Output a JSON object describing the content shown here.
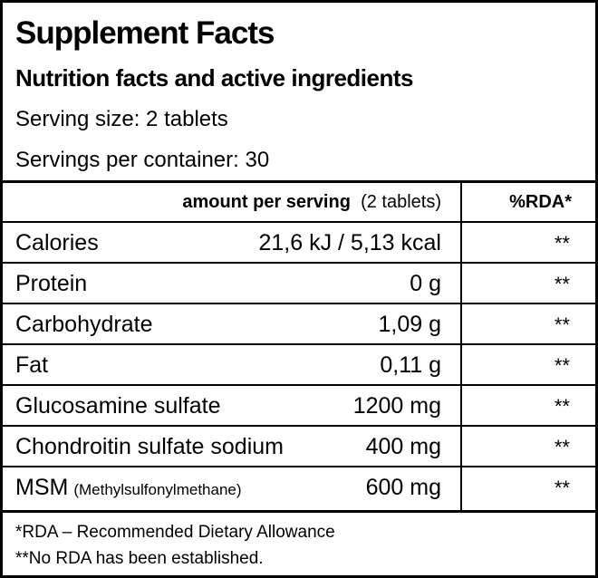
{
  "header": {
    "title": "Supplement Facts",
    "subtitle": "Nutrition facts and active ingredients",
    "serving_size": "Serving size: 2 tablets",
    "servings_per_container": "Servings per container: 30"
  },
  "table": {
    "header": {
      "amount": "amount per serving",
      "serving": "(2 tablets)",
      "rda": "%RDA*"
    },
    "rows": [
      {
        "name": "Calories",
        "amount": "21,6 kJ / 5,13 kcal",
        "rda": "**"
      },
      {
        "name": "Protein",
        "amount": "0 g",
        "rda": "**"
      },
      {
        "name": "Carbohydrate",
        "amount": "1,09 g",
        "rda": "**"
      },
      {
        "name": "Fat",
        "amount": "0,11 g",
        "rda": "**"
      },
      {
        "name": "Glucosamine sulfate",
        "amount": "1200 mg",
        "rda": "**"
      },
      {
        "name": "Chondroitin sulfate sodium",
        "amount": "400 mg",
        "rda": "**"
      },
      {
        "name": "MSM",
        "note": "(Methylsulfonylmethane)",
        "amount": "600 mg",
        "rda": "**"
      }
    ]
  },
  "footnotes": [
    "*RDA – Recommended Dietary Allowance",
    "**No RDA has been established."
  ]
}
